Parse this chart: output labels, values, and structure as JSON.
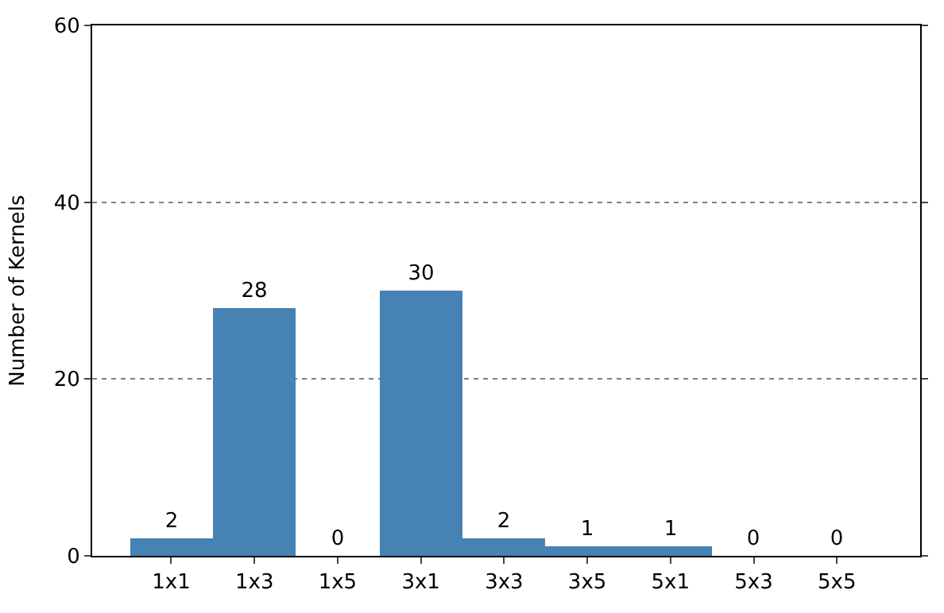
{
  "chart_data": {
    "type": "bar",
    "ylabel": "Number of Kernels",
    "categories": [
      "1x1",
      "1x3",
      "1x5",
      "3x1",
      "3x3",
      "3x5",
      "5x1",
      "5x3",
      "5x5"
    ],
    "values": [
      2,
      28,
      0,
      30,
      2,
      1,
      1,
      0,
      0
    ],
    "color": "#4682b4",
    "ylim": [
      0,
      60
    ],
    "yticks": [
      0,
      20,
      40,
      60
    ],
    "grid": "y",
    "data_labels": true
  }
}
